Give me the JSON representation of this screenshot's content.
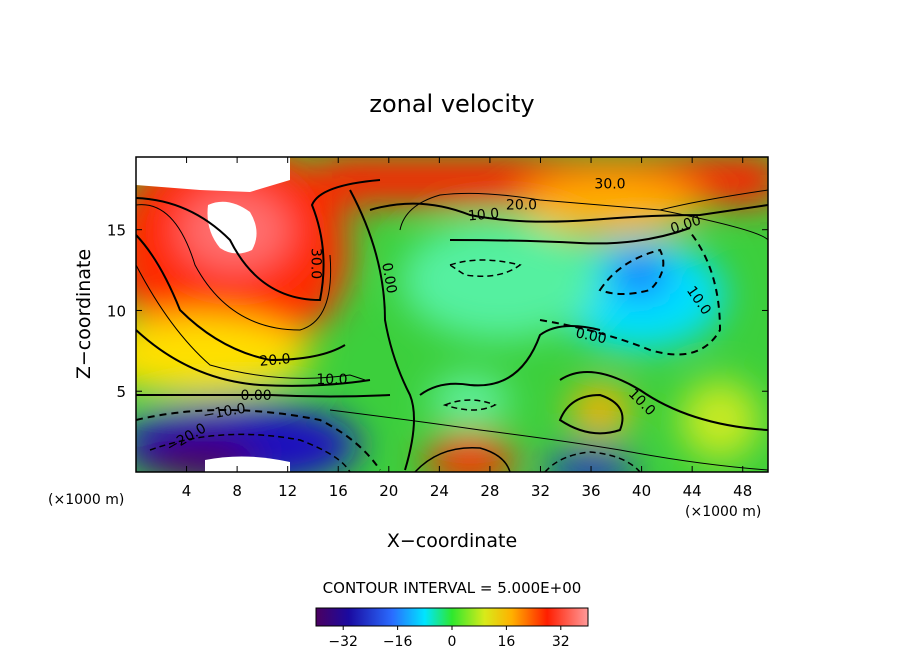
{
  "chart_data": {
    "type": "heatmap",
    "title": "zonal velocity",
    "xlabel": "X−coordinate",
    "ylabel": "Z−coordinate",
    "x_unit_left": "(×1000 m)",
    "x_unit_right": "(×1000 m)",
    "xlim": [
      0,
      50
    ],
    "ylim": [
      0,
      19.5
    ],
    "xticks": [
      4,
      8,
      12,
      16,
      20,
      24,
      28,
      32,
      36,
      40,
      44,
      48
    ],
    "yticks": [
      5,
      10,
      15
    ],
    "contour_interval_text": "CONTOUR INTERVAL = 5.000E+00",
    "colorbar": {
      "range": [
        -40,
        40
      ],
      "ticks": [
        "−32",
        "−16",
        "0",
        "16",
        "32"
      ],
      "tick_values": [
        -32,
        -16,
        0,
        16,
        32
      ]
    },
    "contour_labels": [
      {
        "text": "30.0",
        "x": 37.5,
        "y": 17.8,
        "rot": 0
      },
      {
        "text": "20.0",
        "x": 30.5,
        "y": 16.5,
        "rot": 0
      },
      {
        "text": "10.0",
        "x": 27.5,
        "y": 15.9,
        "rot": -5
      },
      {
        "text": "0.00",
        "x": 43.5,
        "y": 15.3,
        "rot": -18
      },
      {
        "text": "30.0",
        "x": 14.2,
        "y": 12.9,
        "rot": 90
      },
      {
        "text": "0.00",
        "x": 20.0,
        "y": 12.0,
        "rot": 80
      },
      {
        "text": "10.0",
        "x": 44.5,
        "y": 10.6,
        "rot": 55
      },
      {
        "text": "0.00",
        "x": 36.0,
        "y": 8.4,
        "rot": 12
      },
      {
        "text": "20.0",
        "x": 11.0,
        "y": 6.9,
        "rot": -5
      },
      {
        "text": "10.0",
        "x": 15.5,
        "y": 5.7,
        "rot": 0
      },
      {
        "text": "0.00",
        "x": 9.5,
        "y": 4.7,
        "rot": 0
      },
      {
        "text": "10.0",
        "x": 40.0,
        "y": 4.3,
        "rot": 45
      },
      {
        "text": "−10.0",
        "x": 7.0,
        "y": 3.7,
        "rot": -10
      },
      {
        "text": "−20.0",
        "x": 4.0,
        "y": 2.1,
        "rot": -30
      }
    ],
    "grid": false
  }
}
